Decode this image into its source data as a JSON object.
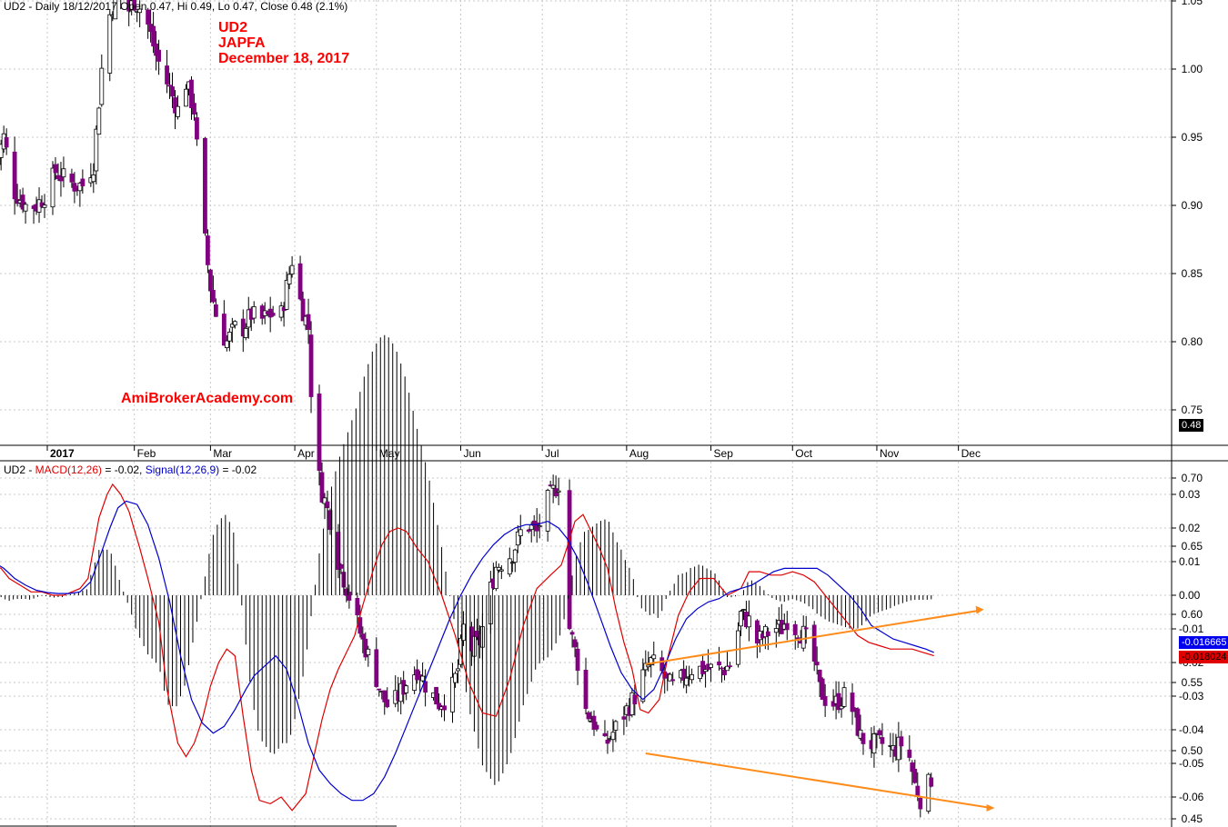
{
  "price_header": {
    "symbol": "UD2",
    "text": "Daily 18/12/2017 Open 0.47, Hi 0.49, Lo 0.47, Close 0.48 (2.1%)"
  },
  "annotation": [
    "UD2",
    "JAPFA",
    "December 18, 2017"
  ],
  "watermark": "AmiBrokerAcademy.com",
  "last_price_label": "0.48",
  "macd_header": {
    "prefix": "UD2 - ",
    "macd_label": "MACD(12,26)",
    "macd_value": " = -0.02, ",
    "signal_label": "Signal(12,26,9)",
    "signal_value": " = -0.02"
  },
  "macd_last_signal": "-0.016665",
  "macd_last_macd": "-0.018024",
  "colors": {
    "up_candle": "#ffffff",
    "down_candle": "#800080",
    "macd_line": "#e00000",
    "signal_line": "#0000cc",
    "trendline": "#ff8c1a",
    "annotation_text": "#ff0000",
    "grid": "#c8c8c8"
  },
  "chart_data": [
    {
      "type": "candlestick",
      "panel": "price",
      "x_labels": [
        "2017",
        "Feb",
        "Mar",
        "Apr",
        "May",
        "Jun",
        "Jul",
        "Aug",
        "Sep",
        "Oct",
        "Nov",
        "Dec"
      ],
      "x_label_positions_day": [
        0,
        32,
        60,
        91,
        121,
        152,
        182,
        213,
        244,
        274,
        305,
        335
      ],
      "y_ticks": [
        "0.45",
        "0.50",
        "0.55",
        "0.60",
        "0.65",
        "0.70",
        "0.75",
        "0.80",
        "0.85",
        "0.90",
        "0.95",
        "1.00",
        "1.05"
      ],
      "ylim": [
        0.44,
        1.09
      ],
      "close_anchors": [
        [
          -19,
          0.93
        ],
        [
          -16,
          0.95
        ],
        [
          -12,
          0.91
        ],
        [
          -8,
          0.9
        ],
        [
          -4,
          0.9
        ],
        [
          0,
          0.91
        ],
        [
          3,
          0.925
        ],
        [
          6,
          0.92
        ],
        [
          10,
          0.915
        ],
        [
          13,
          0.915
        ],
        [
          17,
          0.93
        ],
        [
          20,
          1.0
        ],
        [
          23,
          1.04
        ],
        [
          26,
          1.06
        ],
        [
          29,
          1.04
        ],
        [
          32,
          1.05
        ],
        [
          36,
          1.04
        ],
        [
          40,
          1.01
        ],
        [
          44,
          0.99
        ],
        [
          48,
          0.97
        ],
        [
          51,
          0.99
        ],
        [
          54,
          0.97
        ],
        [
          57,
          0.89
        ],
        [
          60,
          0.84
        ],
        [
          63,
          0.81
        ],
        [
          66,
          0.8
        ],
        [
          69,
          0.81
        ],
        [
          72,
          0.81
        ],
        [
          75,
          0.82
        ],
        [
          78,
          0.815
        ],
        [
          82,
          0.82
        ],
        [
          86,
          0.82
        ],
        [
          90,
          0.86
        ],
        [
          93,
          0.83
        ],
        [
          96,
          0.81
        ],
        [
          98,
          0.72
        ],
        [
          101,
          0.69
        ],
        [
          104,
          0.67
        ],
        [
          107,
          0.64
        ],
        [
          110,
          0.62
        ],
        [
          113,
          0.6
        ],
        [
          116,
          0.58
        ],
        [
          120,
          0.56
        ],
        [
          123,
          0.54
        ],
        [
          126,
          0.53
        ],
        [
          129,
          0.54
        ],
        [
          132,
          0.55
        ],
        [
          136,
          0.56
        ],
        [
          140,
          0.545
        ],
        [
          144,
          0.535
        ],
        [
          148,
          0.54
        ],
        [
          151,
          0.56
        ],
        [
          153,
          0.59
        ],
        [
          156,
          0.575
        ],
        [
          159,
          0.58
        ],
        [
          162,
          0.61
        ],
        [
          165,
          0.635
        ],
        [
          168,
          0.64
        ],
        [
          171,
          0.645
        ],
        [
          174,
          0.66
        ],
        [
          177,
          0.665
        ],
        [
          180,
          0.66
        ],
        [
          183,
          0.68
        ],
        [
          186,
          0.69
        ],
        [
          189,
          0.7
        ],
        [
          190,
          0.67
        ],
        [
          192,
          0.59
        ],
        [
          195,
          0.565
        ],
        [
          198,
          0.53
        ],
        [
          201,
          0.52
        ],
        [
          204,
          0.5
        ],
        [
          207,
          0.51
        ],
        [
          210,
          0.52
        ],
        [
          213,
          0.53
        ],
        [
          216,
          0.54
        ],
        [
          219,
          0.555
        ],
        [
          222,
          0.565
        ],
        [
          225,
          0.56
        ],
        [
          228,
          0.55
        ],
        [
          231,
          0.545
        ],
        [
          234,
          0.555
        ],
        [
          237,
          0.56
        ],
        [
          240,
          0.56
        ],
        [
          243,
          0.56
        ],
        [
          246,
          0.56
        ],
        [
          249,
          0.56
        ],
        [
          252,
          0.565
        ],
        [
          255,
          0.6
        ],
        [
          258,
          0.595
        ],
        [
          261,
          0.58
        ],
        [
          264,
          0.585
        ],
        [
          267,
          0.59
        ],
        [
          270,
          0.59
        ],
        [
          273,
          0.6
        ],
        [
          275,
          0.59
        ],
        [
          278,
          0.585
        ],
        [
          281,
          0.575
        ],
        [
          284,
          0.545
        ],
        [
          287,
          0.535
        ],
        [
          290,
          0.535
        ],
        [
          293,
          0.54
        ],
        [
          296,
          0.53
        ],
        [
          299,
          0.51
        ],
        [
          302,
          0.505
        ],
        [
          305,
          0.505
        ],
        [
          308,
          0.505
        ],
        [
          311,
          0.5
        ],
        [
          314,
          0.505
        ],
        [
          317,
          0.495
        ],
        [
          319,
          0.475
        ],
        [
          321,
          0.465
        ],
        [
          323,
          0.47
        ],
        [
          325,
          0.48
        ]
      ],
      "trendline": [
        [
          220,
          0.498
        ],
        [
          347,
          0.458
        ]
      ],
      "last": {
        "open": 0.47,
        "high": 0.49,
        "low": 0.47,
        "close": 0.48
      }
    },
    {
      "type": "line",
      "panel": "macd",
      "y_ticks": [
        "0.03",
        "0.02",
        "0.01",
        "0.00",
        "-0.01",
        "-0.02",
        "-0.03",
        "-0.04",
        "-0.05",
        "-0.06"
      ],
      "ylim": [
        -0.066,
        0.034
      ],
      "series": [
        {
          "name": "MACD(12,26)",
          "x": [
            -20,
            -17,
            -14,
            -10,
            -6,
            -2,
            2,
            6,
            9,
            12,
            15,
            19,
            22,
            24,
            27,
            30,
            34,
            37,
            41,
            44,
            48,
            51,
            54,
            57,
            60,
            63,
            66,
            69,
            72,
            75,
            78,
            82,
            86,
            90,
            95,
            98,
            101,
            104,
            107,
            110,
            113,
            116,
            120,
            123,
            126,
            129,
            132,
            136,
            140,
            145,
            150,
            155,
            160,
            165,
            170,
            175,
            180,
            185,
            189,
            191,
            194,
            197,
            200,
            203,
            206,
            209,
            212,
            215,
            218,
            221,
            225,
            228,
            232,
            236,
            240,
            245,
            250,
            255,
            258,
            262,
            266,
            270,
            274,
            278,
            282,
            286,
            290,
            294,
            298,
            302,
            306,
            310,
            314,
            318,
            322,
            326
          ],
          "values": [
            0.009,
            0.008,
            0.005,
            0.003,
            0.001,
            0.001,
            0.0,
            0.0,
            0.001,
            0.002,
            0.005,
            0.023,
            0.03,
            0.033,
            0.03,
            0.025,
            0.014,
            0.005,
            -0.008,
            -0.028,
            -0.044,
            -0.048,
            -0.044,
            -0.037,
            -0.027,
            -0.02,
            -0.016,
            -0.018,
            -0.036,
            -0.052,
            -0.061,
            -0.062,
            -0.06,
            -0.064,
            -0.059,
            -0.048,
            -0.037,
            -0.028,
            -0.022,
            -0.017,
            -0.012,
            -0.003,
            0.008,
            0.015,
            0.019,
            0.02,
            0.019,
            0.014,
            0.01,
            0.0,
            -0.012,
            -0.026,
            -0.035,
            -0.036,
            -0.025,
            -0.009,
            0.002,
            0.006,
            0.009,
            0.014,
            0.022,
            0.024,
            0.019,
            0.014,
            0.008,
            -0.004,
            -0.014,
            -0.022,
            -0.034,
            -0.035,
            -0.031,
            -0.019,
            -0.006,
            0.001,
            0.005,
            0.005,
            0.0,
            0.002,
            0.007,
            0.007,
            0.006,
            0.006,
            0.007,
            0.006,
            0.004,
            0.0,
            -0.004,
            -0.008,
            -0.012,
            -0.014,
            -0.015,
            -0.016,
            -0.016,
            -0.016,
            -0.017,
            -0.018
          ]
        },
        {
          "name": "Signal(12,26,9)",
          "x": [
            -20,
            -16,
            -12,
            -8,
            -4,
            0,
            4,
            8,
            12,
            16,
            20,
            23,
            26,
            29,
            33,
            37,
            41,
            45,
            49,
            53,
            57,
            61,
            65,
            69,
            73,
            76,
            80,
            84,
            88,
            92,
            96,
            100,
            104,
            108,
            112,
            116,
            120,
            124,
            128,
            132,
            136,
            140,
            144,
            148,
            152,
            156,
            160,
            164,
            168,
            172,
            176,
            180,
            184,
            188,
            191,
            195,
            199,
            203,
            207,
            211,
            215,
            219,
            223,
            227,
            231,
            235,
            239,
            243,
            247,
            251,
            255,
            259,
            263,
            267,
            271,
            275,
            279,
            283,
            287,
            291,
            295,
            299,
            303,
            307,
            311,
            315,
            319,
            323,
            326
          ],
          "values": [
            0.01,
            0.008,
            0.005,
            0.003,
            0.0015,
            0.0008,
            0.0005,
            0.0005,
            0.001,
            0.004,
            0.013,
            0.02,
            0.026,
            0.028,
            0.027,
            0.021,
            0.011,
            -0.002,
            -0.018,
            -0.031,
            -0.038,
            -0.041,
            -0.039,
            -0.034,
            -0.028,
            -0.024,
            -0.021,
            -0.018,
            -0.022,
            -0.032,
            -0.044,
            -0.052,
            -0.056,
            -0.059,
            -0.061,
            -0.061,
            -0.059,
            -0.054,
            -0.047,
            -0.039,
            -0.031,
            -0.023,
            -0.015,
            -0.007,
            0.0,
            0.006,
            0.011,
            0.015,
            0.018,
            0.02,
            0.021,
            0.021,
            0.022,
            0.02,
            0.017,
            0.011,
            0.003,
            -0.006,
            -0.015,
            -0.023,
            -0.028,
            -0.031,
            -0.028,
            -0.021,
            -0.013,
            -0.007,
            -0.004,
            -0.002,
            -0.001,
            0.001,
            0.002,
            0.003,
            0.005,
            0.007,
            0.008,
            0.008,
            0.008,
            0.008,
            0.006,
            0.003,
            0.0,
            -0.004,
            -0.009,
            -0.011,
            -0.013,
            -0.014,
            -0.015,
            -0.016,
            -0.017
          ]
        }
      ],
      "trendline": [
        [
          220,
          -0.0205
        ],
        [
          343,
          -0.0045
        ]
      ]
    }
  ]
}
